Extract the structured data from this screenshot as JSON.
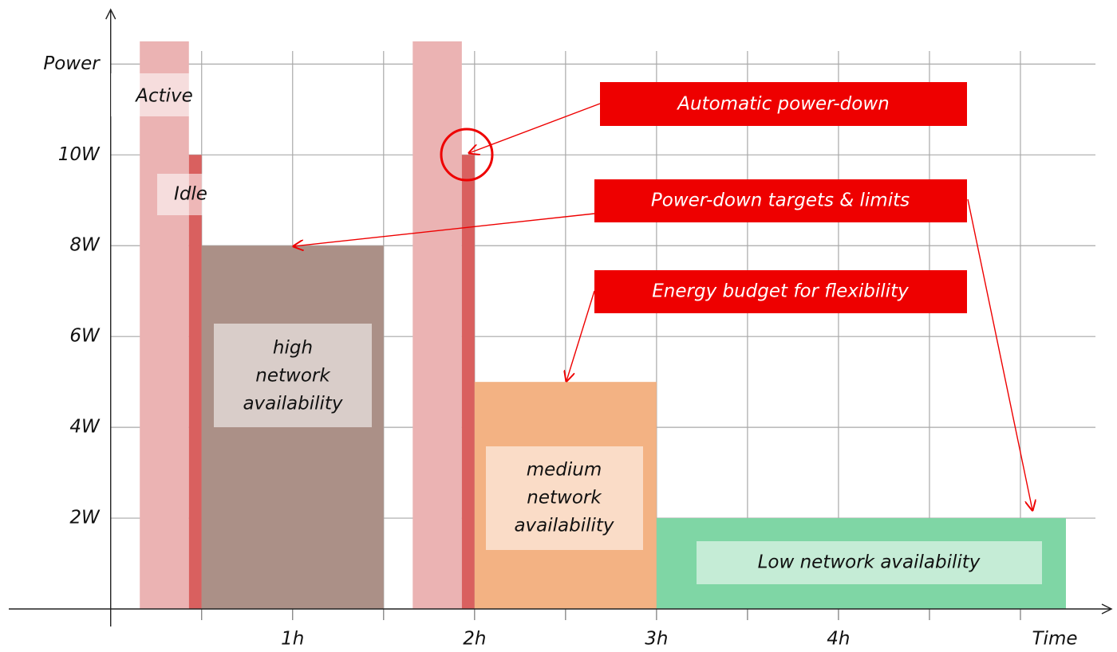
{
  "chart_data": {
    "type": "blocks",
    "ylabel": "Power",
    "xlabel": "Time",
    "xlim": [
      -0.56,
      5.5
    ],
    "ylim": [
      0,
      13.2
    ],
    "xticks": [
      {
        "value": 1,
        "label": "1h"
      },
      {
        "value": 2,
        "label": "2h"
      },
      {
        "value": 3,
        "label": "3h"
      },
      {
        "value": 4,
        "label": "4h"
      }
    ],
    "xgrid": [
      0.5,
      1,
      1.5,
      2,
      2.5,
      3,
      3.5,
      4,
      4.5,
      5
    ],
    "yticks": [
      {
        "value": 2,
        "label": "2W"
      },
      {
        "value": 4,
        "label": "4W"
      },
      {
        "value": 6,
        "label": "6W"
      },
      {
        "value": 8,
        "label": "8W"
      },
      {
        "value": 10,
        "label": "10W"
      },
      {
        "value": 12,
        "label": "Power"
      }
    ],
    "grid": true,
    "blocks": [
      {
        "label": [
          "Active"
        ],
        "x": [
          0.16,
          0.43
        ],
        "value": 12.5,
        "color": "#ebb3b3"
      },
      {
        "label": [
          "Idle"
        ],
        "x": [
          0.43,
          0.5
        ],
        "value": 10,
        "color": "#d9605f"
      },
      {
        "label": [
          "high",
          "network",
          "availability"
        ],
        "x": [
          0.5,
          1.5
        ],
        "value": 8,
        "color": "#ab9087"
      },
      {
        "x": [
          1.66,
          1.93
        ],
        "value": 12.5,
        "color": "#ebb3b3"
      },
      {
        "x": [
          1.93,
          2.0
        ],
        "value": 10,
        "color": "#d9605f"
      },
      {
        "label": [
          "medium",
          "network",
          "availability"
        ],
        "x": [
          2.0,
          3.0
        ],
        "value": 5,
        "color": "#f3b283"
      },
      {
        "label": [
          "Low network availability"
        ],
        "x": [
          3.0,
          5.25
        ],
        "value": 2,
        "color": "#7fd6a5"
      }
    ],
    "annotations": [
      "Automatic power-down",
      "Power-down targets & limits",
      "Energy budget for flexibility"
    ]
  }
}
